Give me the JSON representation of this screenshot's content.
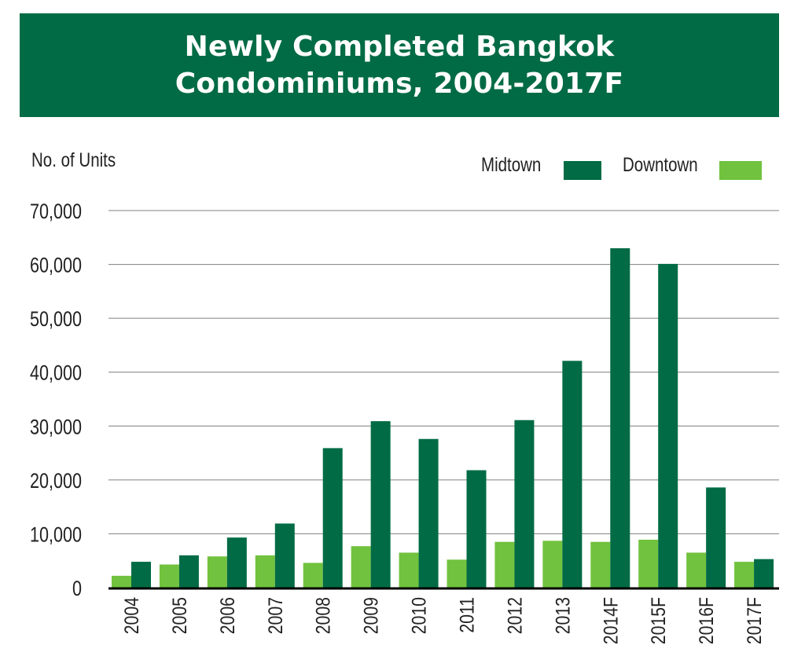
{
  "title_lines": [
    "Newly Completed Bangkok",
    "Condominiums, 2004-2017F"
  ],
  "colors": {
    "banner": "#006b45",
    "midtown": "#006b45",
    "downtown": "#71c23e",
    "grid": "#7f7f7f",
    "axis": "#000000"
  },
  "chart_data": {
    "type": "bar",
    "title": "Newly Completed Bangkok Condominiums, 2004-2017F",
    "ylabel": "No. of Units",
    "xlabel": "",
    "ylim": [
      0,
      70000
    ],
    "yticks": [
      0,
      10000,
      20000,
      30000,
      40000,
      50000,
      60000,
      70000
    ],
    "ytick_labels": [
      "0",
      "10,000",
      "20,000",
      "30,000",
      "40,000",
      "50,000",
      "60,000",
      "70,000"
    ],
    "grid": true,
    "legend_position": "top-right",
    "categories": [
      "2004",
      "2005",
      "2006",
      "2007",
      "2008",
      "2009",
      "2010",
      "2011",
      "2012",
      "2013",
      "2014F",
      "2015F",
      "2016F",
      "2017F"
    ],
    "series": [
      {
        "name": "Downtown",
        "color": "#71c23e",
        "values": [
          2200,
          4300,
          5800,
          6000,
          4600,
          7700,
          6500,
          5200,
          8500,
          8700,
          8500,
          8900,
          6500,
          4800
        ]
      },
      {
        "name": "Midtown",
        "color": "#006b45",
        "values": [
          4800,
          6000,
          9300,
          11900,
          25900,
          30900,
          27600,
          21800,
          31100,
          42100,
          63000,
          60100,
          18600,
          5300
        ]
      }
    ]
  }
}
